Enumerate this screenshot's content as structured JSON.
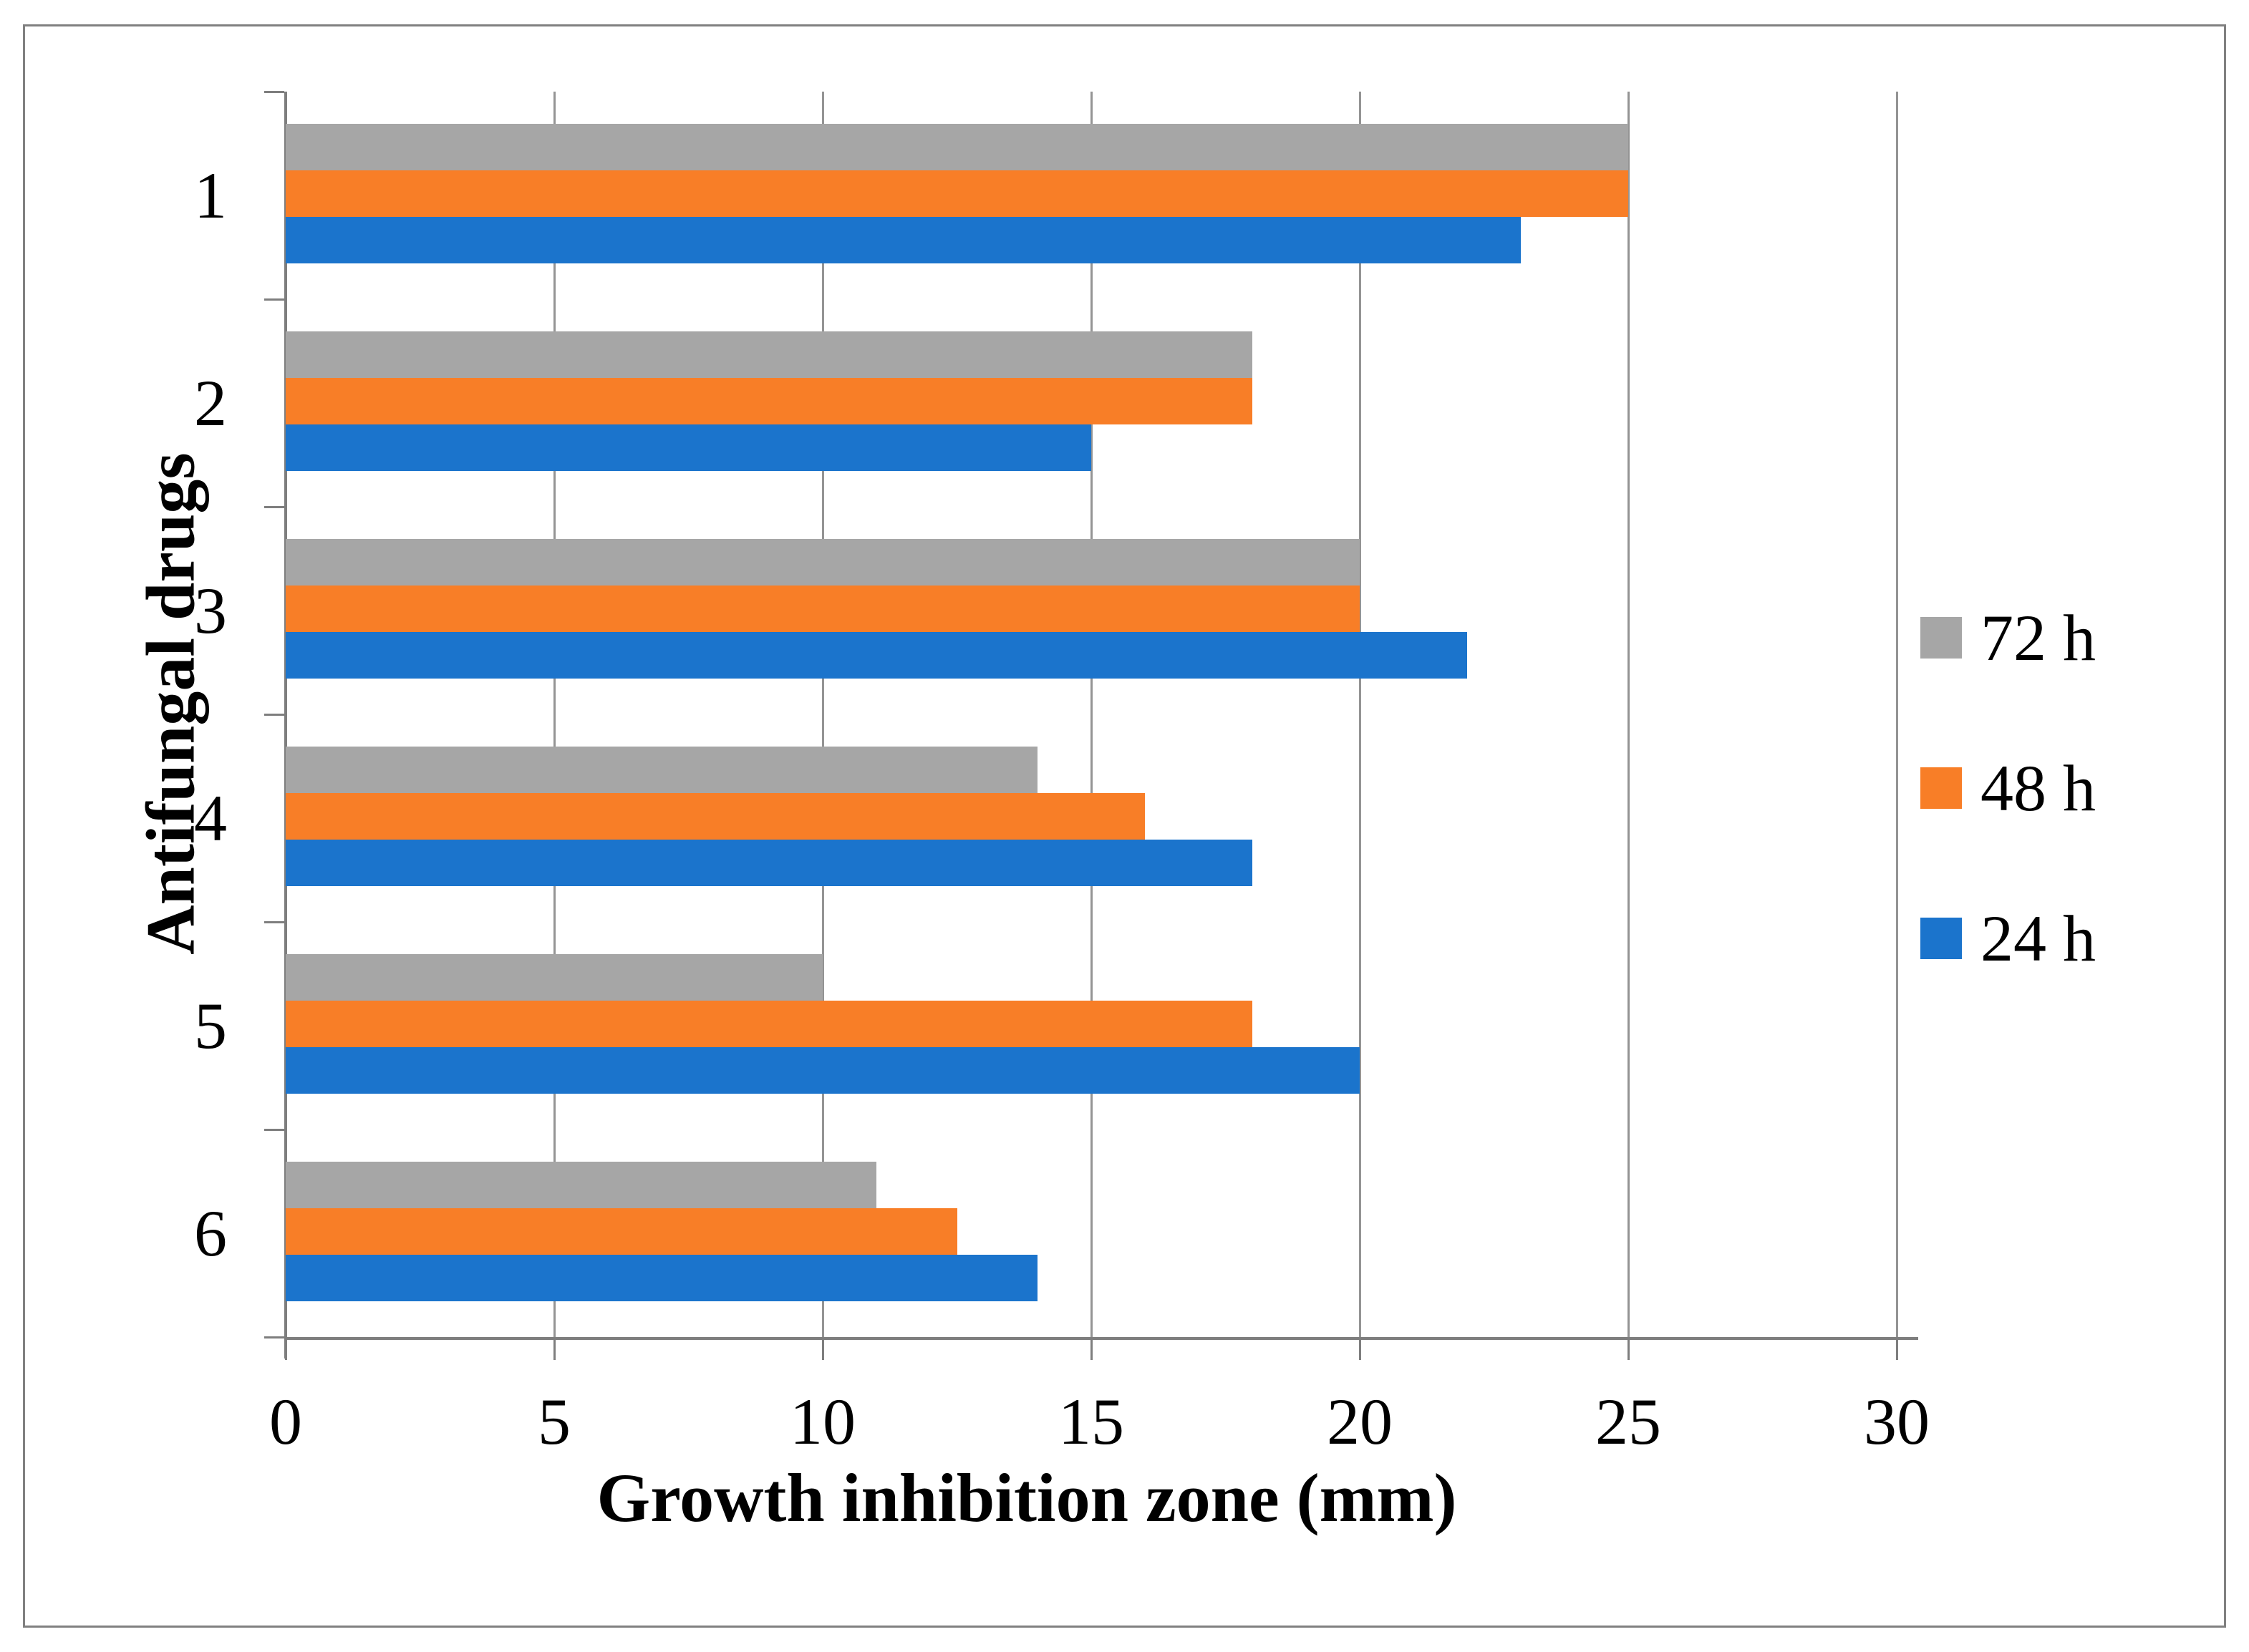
{
  "chart_data": {
    "type": "bar",
    "orientation": "horizontal",
    "xlabel": "Growth inhibition zone (mm)",
    "ylabel": "Antifungal drugs",
    "categories": [
      "1",
      "2",
      "3",
      "4",
      "5",
      "6"
    ],
    "series": [
      {
        "name": "72 h",
        "color": "#A6A6A6",
        "values": [
          25,
          18,
          20,
          14,
          10,
          11
        ]
      },
      {
        "name": "48 h",
        "color": "#F87E27",
        "values": [
          25,
          18,
          20,
          16,
          18,
          12.5
        ]
      },
      {
        "name": "24 h",
        "color": "#1B74CC",
        "values": [
          23,
          15,
          22,
          18,
          20,
          14
        ]
      }
    ],
    "xlim": [
      0,
      30
    ],
    "xticks": [
      0,
      5,
      10,
      15,
      20,
      25,
      30
    ],
    "x_tick_labels": [
      "0",
      "5",
      "10",
      "15",
      "20",
      "25",
      "30"
    ],
    "grid": true,
    "legend_position": "right",
    "legend_order_top_to_bottom": [
      "72 h",
      "48 h",
      "24 h"
    ],
    "bar_order_top_to_bottom": [
      "72 h",
      "48 h",
      "24 h"
    ]
  },
  "colors": {
    "frame_border": "#808080",
    "axis_line": "#7E7E7E",
    "gridline": "#949494",
    "background": "#FFFFFF",
    "text": "#000000"
  }
}
